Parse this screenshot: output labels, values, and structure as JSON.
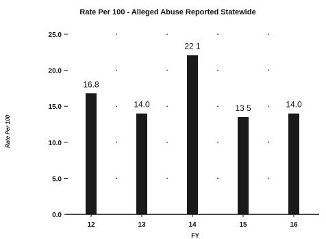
{
  "chart_data": {
    "type": "bar",
    "title": "Rate Per 100 - Alleged Abuse Reported Statewide",
    "xlabel": "FY",
    "ylabel": "Rate Per 100",
    "categories": [
      "12",
      "13",
      "14",
      "15",
      "16"
    ],
    "values": [
      16.8,
      14.0,
      22.1,
      13.5,
      14.0
    ],
    "data_labels": [
      "16.8",
      "14.0",
      "22 1",
      "13 5",
      "14.0"
    ],
    "yticks": [
      "0.0",
      "5.0",
      "10.0",
      "15.0",
      "20.0",
      "25.0"
    ],
    "ylim": [
      0,
      25
    ],
    "grid": "dotted",
    "legend": "none",
    "bar_color": "#1a1a1a"
  }
}
